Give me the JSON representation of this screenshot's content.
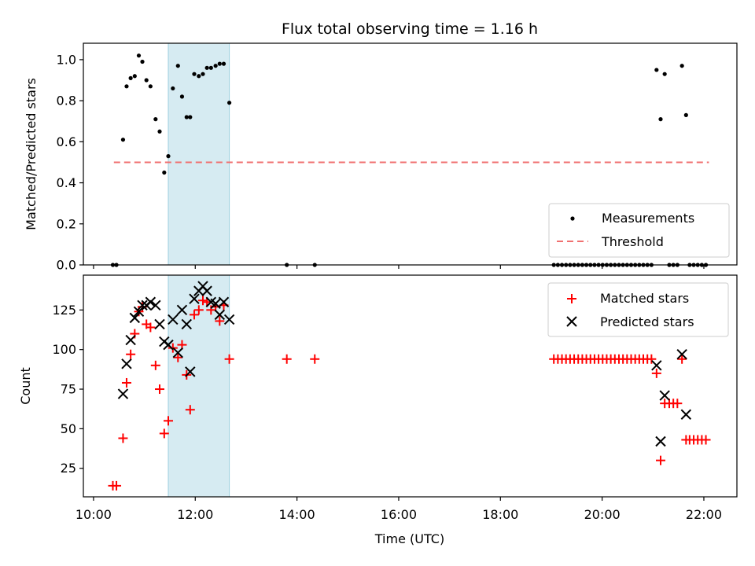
{
  "chart_data": [
    {
      "type": "scatter",
      "title": "Flux total observing time = 1.16 h",
      "xlabel": "",
      "ylabel": "Matched/Predicted stars",
      "xlim": [
        9.8,
        22.65
      ],
      "ylim": [
        0.0,
        1.08
      ],
      "yticks": [
        0.0,
        0.2,
        0.4,
        0.6,
        0.8,
        1.0
      ],
      "ytick_labels": [
        "0.0",
        "0.2",
        "0.4",
        "0.6",
        "0.8",
        "1.0"
      ],
      "grid": false,
      "legend": "lower-right",
      "shaded_span": [
        11.47,
        12.67
      ],
      "threshold": {
        "name": "Threshold",
        "value": 0.5,
        "x": [
          10.4,
          22.1
        ],
        "color": "#f07070"
      },
      "series": [
        {
          "name": "Measurements",
          "color": "#000000",
          "marker": "dot",
          "points": [
            [
              10.38,
              0.0
            ],
            [
              10.45,
              0.0
            ],
            [
              10.58,
              0.61
            ],
            [
              10.65,
              0.87
            ],
            [
              10.73,
              0.91
            ],
            [
              10.81,
              0.92
            ],
            [
              10.89,
              1.02
            ],
            [
              10.96,
              0.99
            ],
            [
              11.04,
              0.9
            ],
            [
              11.12,
              0.87
            ],
            [
              11.22,
              0.71
            ],
            [
              11.3,
              0.65
            ],
            [
              11.39,
              0.45
            ],
            [
              11.47,
              0.53
            ],
            [
              11.56,
              0.86
            ],
            [
              11.66,
              0.97
            ],
            [
              11.74,
              0.82
            ],
            [
              11.83,
              0.72
            ],
            [
              11.9,
              0.72
            ],
            [
              11.98,
              0.93
            ],
            [
              12.07,
              0.92
            ],
            [
              12.15,
              0.93
            ],
            [
              12.23,
              0.96
            ],
            [
              12.31,
              0.96
            ],
            [
              12.4,
              0.97
            ],
            [
              12.48,
              0.98
            ],
            [
              12.56,
              0.98
            ],
            [
              12.67,
              0.79
            ],
            [
              13.8,
              0.0
            ],
            [
              14.35,
              0.0
            ],
            [
              19.05,
              0.0
            ],
            [
              19.13,
              0.0
            ],
            [
              19.21,
              0.0
            ],
            [
              19.29,
              0.0
            ],
            [
              19.37,
              0.0
            ],
            [
              19.45,
              0.0
            ],
            [
              19.53,
              0.0
            ],
            [
              19.61,
              0.0
            ],
            [
              19.69,
              0.0
            ],
            [
              19.77,
              0.0
            ],
            [
              19.85,
              0.0
            ],
            [
              19.93,
              0.0
            ],
            [
              20.01,
              0.0
            ],
            [
              20.09,
              0.0
            ],
            [
              20.17,
              0.0
            ],
            [
              20.25,
              0.0
            ],
            [
              20.33,
              0.0
            ],
            [
              20.41,
              0.0
            ],
            [
              20.49,
              0.0
            ],
            [
              20.57,
              0.0
            ],
            [
              20.65,
              0.0
            ],
            [
              20.73,
              0.0
            ],
            [
              20.81,
              0.0
            ],
            [
              20.89,
              0.0
            ],
            [
              20.97,
              0.0
            ],
            [
              21.07,
              0.95
            ],
            [
              21.15,
              0.71
            ],
            [
              21.23,
              0.93
            ],
            [
              21.32,
              0.0
            ],
            [
              21.4,
              0.0
            ],
            [
              21.48,
              0.0
            ],
            [
              21.57,
              0.97
            ],
            [
              21.65,
              0.73
            ],
            [
              21.72,
              0.0
            ],
            [
              21.8,
              0.0
            ],
            [
              21.88,
              0.0
            ],
            [
              21.96,
              0.0
            ],
            [
              22.04,
              0.0
            ]
          ]
        }
      ]
    },
    {
      "type": "scatter",
      "xlabel": "Time (UTC)",
      "ylabel": "Count",
      "xlim": [
        9.8,
        22.65
      ],
      "ylim": [
        7,
        147
      ],
      "xticks": [
        10,
        12,
        14,
        16,
        18,
        20,
        22
      ],
      "xtick_labels": [
        "10:00",
        "12:00",
        "14:00",
        "16:00",
        "18:00",
        "20:00",
        "22:00"
      ],
      "yticks": [
        25,
        50,
        75,
        100,
        125
      ],
      "ytick_labels": [
        "25",
        "50",
        "75",
        "100",
        "125"
      ],
      "grid": false,
      "legend": "upper-right",
      "shaded_span": [
        11.47,
        12.67
      ],
      "series": [
        {
          "name": "Matched stars",
          "color": "#ff0000",
          "marker": "plus",
          "points": [
            [
              10.38,
              14
            ],
            [
              10.45,
              14
            ],
            [
              10.58,
              44
            ],
            [
              10.65,
              79
            ],
            [
              10.73,
              97
            ],
            [
              10.81,
              110
            ],
            [
              10.89,
              124
            ],
            [
              10.96,
              127
            ],
            [
              11.04,
              116
            ],
            [
              11.12,
              114
            ],
            [
              11.22,
              90
            ],
            [
              11.3,
              75
            ],
            [
              11.39,
              47
            ],
            [
              11.47,
              55
            ],
            [
              11.56,
              101
            ],
            [
              11.66,
              95
            ],
            [
              11.74,
              103
            ],
            [
              11.83,
              84
            ],
            [
              11.9,
              62
            ],
            [
              11.98,
              122
            ],
            [
              12.07,
              125
            ],
            [
              12.15,
              131
            ],
            [
              12.23,
              130
            ],
            [
              12.31,
              125
            ],
            [
              12.4,
              127
            ],
            [
              12.48,
              118
            ],
            [
              12.56,
              128
            ],
            [
              12.67,
              94
            ],
            [
              13.8,
              94
            ],
            [
              14.35,
              94
            ],
            [
              19.05,
              94
            ],
            [
              19.13,
              94
            ],
            [
              19.21,
              94
            ],
            [
              19.29,
              94
            ],
            [
              19.37,
              94
            ],
            [
              19.45,
              94
            ],
            [
              19.53,
              94
            ],
            [
              19.61,
              94
            ],
            [
              19.69,
              94
            ],
            [
              19.77,
              94
            ],
            [
              19.85,
              94
            ],
            [
              19.93,
              94
            ],
            [
              20.01,
              94
            ],
            [
              20.09,
              94
            ],
            [
              20.17,
              94
            ],
            [
              20.25,
              94
            ],
            [
              20.33,
              94
            ],
            [
              20.41,
              94
            ],
            [
              20.49,
              94
            ],
            [
              20.57,
              94
            ],
            [
              20.65,
              94
            ],
            [
              20.73,
              94
            ],
            [
              20.81,
              94
            ],
            [
              20.89,
              94
            ],
            [
              20.97,
              94
            ],
            [
              21.07,
              85
            ],
            [
              21.15,
              30
            ],
            [
              21.23,
              66
            ],
            [
              21.32,
              66
            ],
            [
              21.4,
              66
            ],
            [
              21.48,
              66
            ],
            [
              21.57,
              94
            ],
            [
              21.65,
              43
            ],
            [
              21.72,
              43
            ],
            [
              21.8,
              43
            ],
            [
              21.88,
              43
            ],
            [
              21.96,
              43
            ],
            [
              22.04,
              43
            ]
          ]
        },
        {
          "name": "Predicted stars",
          "color": "#000000",
          "marker": "x",
          "points": [
            [
              10.58,
              72
            ],
            [
              10.65,
              91
            ],
            [
              10.73,
              106
            ],
            [
              10.81,
              120
            ],
            [
              10.89,
              124
            ],
            [
              10.96,
              128
            ],
            [
              11.04,
              128
            ],
            [
              11.12,
              130
            ],
            [
              11.22,
              128
            ],
            [
              11.3,
              116
            ],
            [
              11.39,
              105
            ],
            [
              11.47,
              103
            ],
            [
              11.56,
              119
            ],
            [
              11.66,
              98
            ],
            [
              11.74,
              125
            ],
            [
              11.83,
              116
            ],
            [
              11.9,
              86
            ],
            [
              11.98,
              132
            ],
            [
              12.07,
              137
            ],
            [
              12.15,
              140
            ],
            [
              12.23,
              137
            ],
            [
              12.31,
              130
            ],
            [
              12.4,
              129
            ],
            [
              12.48,
              122
            ],
            [
              12.56,
              130
            ],
            [
              12.67,
              119
            ],
            [
              21.07,
              90
            ],
            [
              21.15,
              42
            ],
            [
              21.23,
              71
            ],
            [
              21.57,
              97
            ],
            [
              21.65,
              59
            ]
          ]
        }
      ]
    }
  ]
}
